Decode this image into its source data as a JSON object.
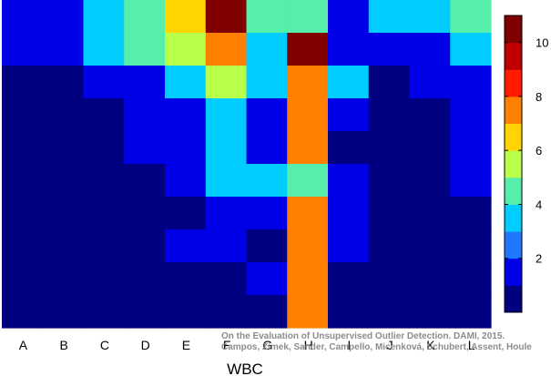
{
  "chart_data": {
    "type": "heatmap",
    "xlabel": "WBC",
    "x_categories": [
      "A",
      "B",
      "C",
      "D",
      "E",
      "F",
      "G",
      "H",
      "I",
      "J",
      "K",
      "L"
    ],
    "rows": 10,
    "matrix": [
      [
        1.5,
        1.5,
        3,
        4,
        6,
        10,
        4,
        4,
        1.5,
        3,
        3,
        4
      ],
      [
        1.5,
        1.5,
        3,
        4,
        5,
        7,
        3,
        10,
        1.5,
        1.5,
        1.5,
        3
      ],
      [
        0.5,
        0.5,
        1.5,
        1.5,
        3,
        5,
        3,
        7,
        3,
        0.5,
        1.5,
        1.5
      ],
      [
        0.5,
        0.5,
        0.5,
        1.5,
        1.5,
        3,
        1.5,
        7,
        1.5,
        0.5,
        0.5,
        1.5
      ],
      [
        0.5,
        0.5,
        0.5,
        1.5,
        1.5,
        3,
        1.5,
        7,
        0.5,
        0.5,
        0.5,
        1.5
      ],
      [
        0.5,
        0.5,
        0.5,
        0.5,
        1.5,
        3,
        3,
        4,
        1.5,
        0.5,
        0.5,
        1.5
      ],
      [
        0.5,
        0.5,
        0.5,
        0.5,
        0.5,
        1.5,
        1.5,
        7,
        1.5,
        0.5,
        0.5,
        0.5
      ],
      [
        0.5,
        0.5,
        0.5,
        0.5,
        1.5,
        1.5,
        0.5,
        7,
        1.5,
        0.5,
        0.5,
        0.5
      ],
      [
        0.5,
        0.5,
        0.5,
        0.5,
        0.5,
        0.5,
        1.5,
        7,
        0.5,
        0.5,
        0.5,
        0.5
      ],
      [
        0.5,
        0.5,
        0.5,
        0.5,
        0.5,
        0.5,
        0.5,
        7,
        0.5,
        0.5,
        0.5,
        0.5
      ]
    ],
    "colorbar": {
      "range": [
        0,
        11
      ],
      "ticks": [
        2,
        4,
        6,
        8,
        10
      ],
      "colors": [
        "#000080",
        "#0000e6",
        "#1f78ff",
        "#00ccff",
        "#55eeaa",
        "#b8ff49",
        "#ffd400",
        "#ff8000",
        "#ff1a00",
        "#c00000",
        "#800000"
      ]
    },
    "legend_placement": "right"
  },
  "watermark": {
    "line1": "On the Evaluation of Unsupervised Outlier Detection. DAMI, 2015.",
    "line2": "Campos, Zimek, Sander, Campello, Micenková, Schubert, Assent, Houle"
  }
}
